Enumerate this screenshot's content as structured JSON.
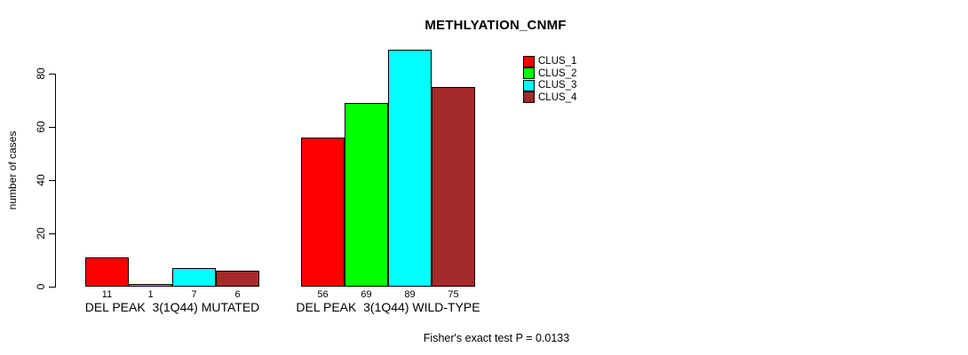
{
  "title": "METHLYATION_CNMF",
  "y_axis": {
    "label": "number of cases",
    "ticks": [
      "0",
      "20",
      "40",
      "60",
      "80"
    ]
  },
  "footer": "Fisher's exact test P = 0.0133",
  "legend": {
    "entries": [
      {
        "label": "CLUS_1",
        "color": "#FF0000"
      },
      {
        "label": "CLUS_2",
        "color": "#00FF00"
      },
      {
        "label": "CLUS_3",
        "color": "#00FFFF"
      },
      {
        "label": "CLUS_4",
        "color": "#A52A2A"
      }
    ]
  },
  "chart_data": {
    "type": "bar",
    "title": "METHLYATION_CNMF",
    "ylabel": "number of cases",
    "xlabel": "",
    "categories": [
      "DEL PEAK  3(1Q44) MUTATED",
      "DEL PEAK  3(1Q44) WILD-TYPE"
    ],
    "series": [
      {
        "name": "CLUS_1",
        "color": "#FF0000",
        "values": [
          11,
          56
        ]
      },
      {
        "name": "CLUS_2",
        "color": "#00FF00",
        "values": [
          1,
          69
        ]
      },
      {
        "name": "CLUS_3",
        "color": "#00FFFF",
        "values": [
          7,
          89
        ]
      },
      {
        "name": "CLUS_4",
        "color": "#A52A2A",
        "values": [
          6,
          75
        ]
      }
    ],
    "bar_value_labels": [
      [
        "11",
        "1",
        "7",
        "6"
      ],
      [
        "56",
        "69",
        "89",
        "75"
      ]
    ],
    "yticks": [
      0,
      20,
      40,
      60,
      80
    ],
    "ylim": [
      0,
      80
    ],
    "grid": false,
    "legend_position": "top-right",
    "bar_border_color": "#000000",
    "annotation": "Fisher's exact test P = 0.0133"
  }
}
